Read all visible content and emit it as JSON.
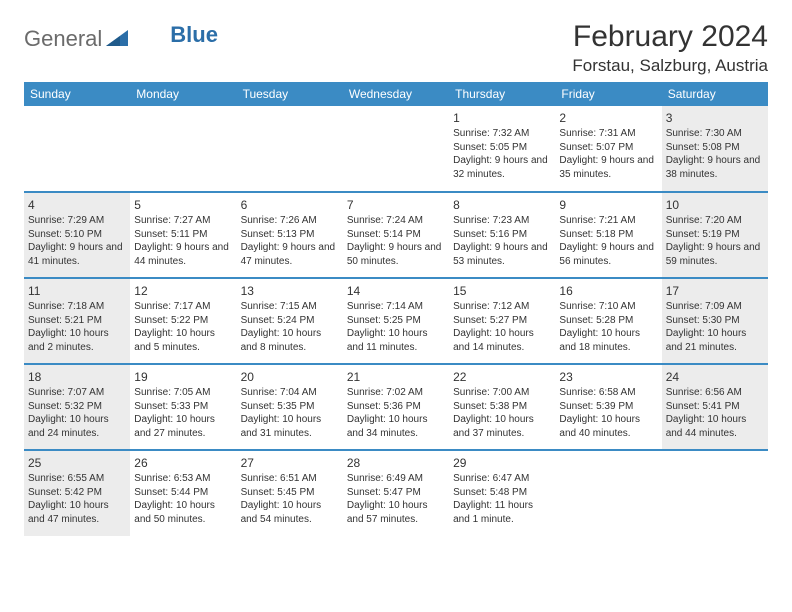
{
  "logo": {
    "text1": "General",
    "text2": "Blue"
  },
  "title": "February 2024",
  "location": "Forstau, Salzburg, Austria",
  "daynames": [
    "Sunday",
    "Monday",
    "Tuesday",
    "Wednesday",
    "Thursday",
    "Friday",
    "Saturday"
  ],
  "colors": {
    "header_bg": "#3b8bc4",
    "header_text": "#ffffff",
    "shade_bg": "#ececec",
    "rule": "#3b8bc4",
    "logo_gray": "#6b6b6b",
    "logo_blue": "#2b6ea8"
  },
  "weeks": [
    [
      {
        "day": "",
        "sunrise": "",
        "sunset": "",
        "daylight": "",
        "shade": false
      },
      {
        "day": "",
        "sunrise": "",
        "sunset": "",
        "daylight": "",
        "shade": false
      },
      {
        "day": "",
        "sunrise": "",
        "sunset": "",
        "daylight": "",
        "shade": false
      },
      {
        "day": "",
        "sunrise": "",
        "sunset": "",
        "daylight": "",
        "shade": false
      },
      {
        "day": "1",
        "sunrise": "Sunrise: 7:32 AM",
        "sunset": "Sunset: 5:05 PM",
        "daylight": "Daylight: 9 hours and 32 minutes.",
        "shade": false
      },
      {
        "day": "2",
        "sunrise": "Sunrise: 7:31 AM",
        "sunset": "Sunset: 5:07 PM",
        "daylight": "Daylight: 9 hours and 35 minutes.",
        "shade": false
      },
      {
        "day": "3",
        "sunrise": "Sunrise: 7:30 AM",
        "sunset": "Sunset: 5:08 PM",
        "daylight": "Daylight: 9 hours and 38 minutes.",
        "shade": true
      }
    ],
    [
      {
        "day": "4",
        "sunrise": "Sunrise: 7:29 AM",
        "sunset": "Sunset: 5:10 PM",
        "daylight": "Daylight: 9 hours and 41 minutes.",
        "shade": true
      },
      {
        "day": "5",
        "sunrise": "Sunrise: 7:27 AM",
        "sunset": "Sunset: 5:11 PM",
        "daylight": "Daylight: 9 hours and 44 minutes.",
        "shade": false
      },
      {
        "day": "6",
        "sunrise": "Sunrise: 7:26 AM",
        "sunset": "Sunset: 5:13 PM",
        "daylight": "Daylight: 9 hours and 47 minutes.",
        "shade": false
      },
      {
        "day": "7",
        "sunrise": "Sunrise: 7:24 AM",
        "sunset": "Sunset: 5:14 PM",
        "daylight": "Daylight: 9 hours and 50 minutes.",
        "shade": false
      },
      {
        "day": "8",
        "sunrise": "Sunrise: 7:23 AM",
        "sunset": "Sunset: 5:16 PM",
        "daylight": "Daylight: 9 hours and 53 minutes.",
        "shade": false
      },
      {
        "day": "9",
        "sunrise": "Sunrise: 7:21 AM",
        "sunset": "Sunset: 5:18 PM",
        "daylight": "Daylight: 9 hours and 56 minutes.",
        "shade": false
      },
      {
        "day": "10",
        "sunrise": "Sunrise: 7:20 AM",
        "sunset": "Sunset: 5:19 PM",
        "daylight": "Daylight: 9 hours and 59 minutes.",
        "shade": true
      }
    ],
    [
      {
        "day": "11",
        "sunrise": "Sunrise: 7:18 AM",
        "sunset": "Sunset: 5:21 PM",
        "daylight": "Daylight: 10 hours and 2 minutes.",
        "shade": true
      },
      {
        "day": "12",
        "sunrise": "Sunrise: 7:17 AM",
        "sunset": "Sunset: 5:22 PM",
        "daylight": "Daylight: 10 hours and 5 minutes.",
        "shade": false
      },
      {
        "day": "13",
        "sunrise": "Sunrise: 7:15 AM",
        "sunset": "Sunset: 5:24 PM",
        "daylight": "Daylight: 10 hours and 8 minutes.",
        "shade": false
      },
      {
        "day": "14",
        "sunrise": "Sunrise: 7:14 AM",
        "sunset": "Sunset: 5:25 PM",
        "daylight": "Daylight: 10 hours and 11 minutes.",
        "shade": false
      },
      {
        "day": "15",
        "sunrise": "Sunrise: 7:12 AM",
        "sunset": "Sunset: 5:27 PM",
        "daylight": "Daylight: 10 hours and 14 minutes.",
        "shade": false
      },
      {
        "day": "16",
        "sunrise": "Sunrise: 7:10 AM",
        "sunset": "Sunset: 5:28 PM",
        "daylight": "Daylight: 10 hours and 18 minutes.",
        "shade": false
      },
      {
        "day": "17",
        "sunrise": "Sunrise: 7:09 AM",
        "sunset": "Sunset: 5:30 PM",
        "daylight": "Daylight: 10 hours and 21 minutes.",
        "shade": true
      }
    ],
    [
      {
        "day": "18",
        "sunrise": "Sunrise: 7:07 AM",
        "sunset": "Sunset: 5:32 PM",
        "daylight": "Daylight: 10 hours and 24 minutes.",
        "shade": true
      },
      {
        "day": "19",
        "sunrise": "Sunrise: 7:05 AM",
        "sunset": "Sunset: 5:33 PM",
        "daylight": "Daylight: 10 hours and 27 minutes.",
        "shade": false
      },
      {
        "day": "20",
        "sunrise": "Sunrise: 7:04 AM",
        "sunset": "Sunset: 5:35 PM",
        "daylight": "Daylight: 10 hours and 31 minutes.",
        "shade": false
      },
      {
        "day": "21",
        "sunrise": "Sunrise: 7:02 AM",
        "sunset": "Sunset: 5:36 PM",
        "daylight": "Daylight: 10 hours and 34 minutes.",
        "shade": false
      },
      {
        "day": "22",
        "sunrise": "Sunrise: 7:00 AM",
        "sunset": "Sunset: 5:38 PM",
        "daylight": "Daylight: 10 hours and 37 minutes.",
        "shade": false
      },
      {
        "day": "23",
        "sunrise": "Sunrise: 6:58 AM",
        "sunset": "Sunset: 5:39 PM",
        "daylight": "Daylight: 10 hours and 40 minutes.",
        "shade": false
      },
      {
        "day": "24",
        "sunrise": "Sunrise: 6:56 AM",
        "sunset": "Sunset: 5:41 PM",
        "daylight": "Daylight: 10 hours and 44 minutes.",
        "shade": true
      }
    ],
    [
      {
        "day": "25",
        "sunrise": "Sunrise: 6:55 AM",
        "sunset": "Sunset: 5:42 PM",
        "daylight": "Daylight: 10 hours and 47 minutes.",
        "shade": true
      },
      {
        "day": "26",
        "sunrise": "Sunrise: 6:53 AM",
        "sunset": "Sunset: 5:44 PM",
        "daylight": "Daylight: 10 hours and 50 minutes.",
        "shade": false
      },
      {
        "day": "27",
        "sunrise": "Sunrise: 6:51 AM",
        "sunset": "Sunset: 5:45 PM",
        "daylight": "Daylight: 10 hours and 54 minutes.",
        "shade": false
      },
      {
        "day": "28",
        "sunrise": "Sunrise: 6:49 AM",
        "sunset": "Sunset: 5:47 PM",
        "daylight": "Daylight: 10 hours and 57 minutes.",
        "shade": false
      },
      {
        "day": "29",
        "sunrise": "Sunrise: 6:47 AM",
        "sunset": "Sunset: 5:48 PM",
        "daylight": "Daylight: 11 hours and 1 minute.",
        "shade": false
      },
      {
        "day": "",
        "sunrise": "",
        "sunset": "",
        "daylight": "",
        "shade": false
      },
      {
        "day": "",
        "sunrise": "",
        "sunset": "",
        "daylight": "",
        "shade": false
      }
    ]
  ]
}
